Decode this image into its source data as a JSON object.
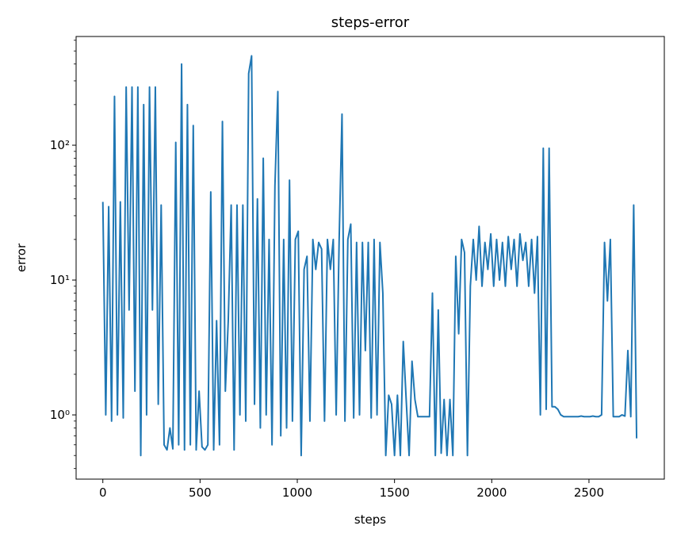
{
  "chart_data": {
    "type": "line",
    "title": "steps-error",
    "x_label": "steps",
    "y_label": "error",
    "color": "#1f77b4",
    "y_scale": "log",
    "grid": false,
    "xlim": [
      -137.5,
      2887.5
    ],
    "xticks": [
      0,
      500,
      1000,
      1500,
      2000,
      2500
    ],
    "ylim": [
      0.334,
      640
    ],
    "yticks": [
      {
        "value": 1,
        "label": "10⁰"
      },
      {
        "value": 10,
        "label": "10¹"
      },
      {
        "value": 100,
        "label": "10²"
      }
    ],
    "yminorticks": [
      0.4,
      0.5,
      0.6,
      0.7,
      0.8,
      0.9,
      2,
      3,
      4,
      5,
      6,
      7,
      8,
      9,
      20,
      30,
      40,
      50,
      60,
      70,
      80,
      90,
      200,
      300,
      400,
      500,
      600
    ],
    "x": [
      0,
      15,
      30,
      45,
      60,
      75,
      90,
      105,
      120,
      135,
      150,
      165,
      180,
      195,
      210,
      225,
      240,
      255,
      270,
      285,
      300,
      315,
      330,
      345,
      360,
      375,
      390,
      405,
      420,
      435,
      450,
      465,
      480,
      495,
      510,
      525,
      540,
      555,
      570,
      585,
      600,
      615,
      630,
      645,
      660,
      675,
      690,
      705,
      720,
      735,
      750,
      765,
      780,
      795,
      810,
      825,
      840,
      855,
      870,
      885,
      900,
      915,
      930,
      945,
      960,
      975,
      990,
      1005,
      1020,
      1035,
      1050,
      1065,
      1080,
      1095,
      1110,
      1125,
      1140,
      1155,
      1170,
      1185,
      1200,
      1215,
      1230,
      1245,
      1260,
      1275,
      1290,
      1305,
      1320,
      1335,
      1350,
      1365,
      1380,
      1395,
      1410,
      1425,
      1440,
      1455,
      1470,
      1485,
      1500,
      1515,
      1530,
      1545,
      1560,
      1575,
      1590,
      1605,
      1620,
      1635,
      1650,
      1665,
      1680,
      1695,
      1710,
      1725,
      1740,
      1755,
      1770,
      1785,
      1800,
      1815,
      1830,
      1845,
      1860,
      1875,
      1890,
      1905,
      1920,
      1935,
      1950,
      1965,
      1980,
      1995,
      2010,
      2025,
      2040,
      2055,
      2070,
      2085,
      2100,
      2115,
      2130,
      2145,
      2160,
      2175,
      2190,
      2205,
      2220,
      2235,
      2250,
      2265,
      2280,
      2295,
      2310,
      2325,
      2340,
      2355,
      2370,
      2385,
      2400,
      2415,
      2430,
      2445,
      2460,
      2475,
      2490,
      2505,
      2520,
      2535,
      2550,
      2565,
      2580,
      2595,
      2610,
      2625,
      2640,
      2655,
      2670,
      2685,
      2700,
      2715,
      2730,
      2745
    ],
    "values": [
      38,
      1.0,
      35,
      0.9,
      230,
      1.0,
      38,
      0.95,
      270,
      6,
      270,
      1.5,
      270,
      0.5,
      200,
      1.0,
      270,
      6,
      270,
      1.2,
      36,
      0.6,
      0.55,
      0.8,
      0.56,
      105,
      0.6,
      400,
      0.55,
      200,
      0.6,
      140,
      0.55,
      1.5,
      0.58,
      0.55,
      0.6,
      45,
      0.55,
      5,
      0.6,
      150,
      1.5,
      5,
      36,
      0.55,
      36,
      1.0,
      36,
      0.9,
      340,
      460,
      1.2,
      40,
      0.8,
      80,
      1.0,
      20,
      0.6,
      50,
      250,
      0.7,
      20,
      0.8,
      55,
      0.9,
      20,
      23,
      0.5,
      12,
      15,
      0.9,
      20,
      12,
      19,
      17,
      0.9,
      20,
      12,
      20,
      1.0,
      19,
      170,
      0.9,
      20,
      26,
      0.95,
      19,
      1.0,
      19,
      3,
      19,
      0.95,
      20,
      1.0,
      19,
      8,
      0.5,
      1.4,
      1.2,
      0.5,
      1.4,
      0.5,
      3.5,
      1.3,
      0.5,
      2.5,
      1.3,
      0.97,
      0.97,
      0.97,
      0.97,
      0.97,
      8,
      0.5,
      6,
      0.52,
      1.3,
      0.5,
      1.3,
      0.5,
      15,
      4,
      20,
      16,
      0.5,
      9,
      20,
      10,
      25,
      9,
      19,
      12,
      22,
      9,
      20,
      10,
      19,
      9,
      21,
      12,
      20,
      9,
      22,
      14,
      19,
      9,
      20,
      8,
      21,
      1.0,
      95,
      1.1,
      95,
      1.15,
      1.15,
      1.1,
      1.0,
      0.97,
      0.97,
      0.97,
      0.97,
      0.97,
      0.97,
      0.98,
      0.97,
      0.97,
      0.97,
      0.98,
      0.97,
      0.97,
      1.0,
      19,
      7,
      20,
      0.97,
      0.97,
      0.97,
      1.0,
      0.98,
      3,
      0.97,
      36,
      0.67
    ]
  }
}
